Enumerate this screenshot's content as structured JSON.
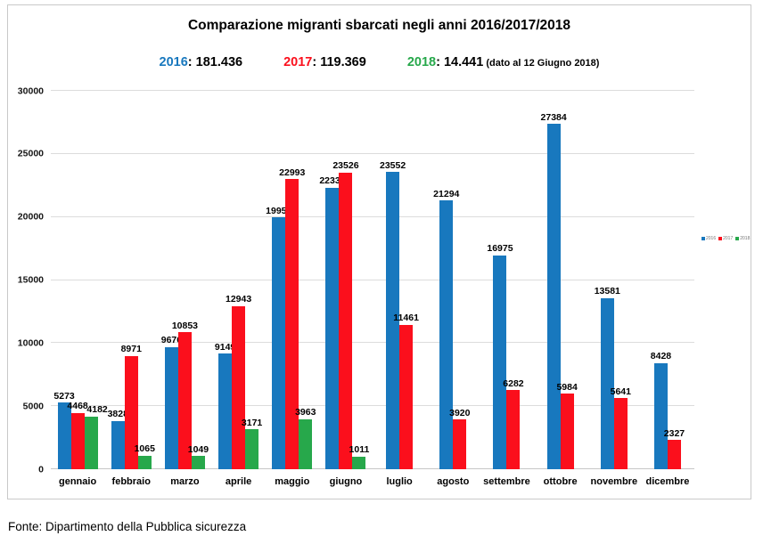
{
  "header": {
    "title": "Comparazione migranti sbarcati negli anni 2016/2017/2018",
    "label_sep": ": ",
    "summary": [
      {
        "year": "2016",
        "total": "181.436",
        "note": "",
        "color": "#1878BE"
      },
      {
        "year": "2017",
        "total": "119.369",
        "note": "",
        "color": "#FB0F1C"
      },
      {
        "year": "2018",
        "total": "14.441",
        "note": "(dato al 12 Giugno 2018)",
        "color": "#27A84B"
      }
    ]
  },
  "chart_data": {
    "type": "bar",
    "title": "Comparazione migranti sbarcati negli anni 2016/2017/2018",
    "categories": [
      "gennaio",
      "febbraio",
      "marzo",
      "aprile",
      "maggio",
      "giugno",
      "luglio",
      "agosto",
      "settembre",
      "ottobre",
      "novembre",
      "dicembre"
    ],
    "series": [
      {
        "name": "2016",
        "color": "#1878BE",
        "values": [
          5273,
          3828,
          9676,
          9149,
          19957,
          22339,
          23552,
          21294,
          16975,
          27384,
          13581,
          8428
        ]
      },
      {
        "name": "2017",
        "color": "#FB0F1C",
        "values": [
          4468,
          8971,
          10853,
          12943,
          22993,
          23526,
          11461,
          3920,
          6282,
          5984,
          5641,
          2327
        ]
      },
      {
        "name": "2018",
        "color": "#27A84B",
        "values": [
          4182,
          1065,
          1049,
          3171,
          3963,
          1011,
          null,
          null,
          null,
          null,
          null,
          null
        ]
      }
    ],
    "xlabel": "",
    "ylabel": "",
    "ylim": [
      0,
      30000
    ],
    "yticks": [
      0,
      5000,
      10000,
      15000,
      20000,
      25000,
      30000
    ],
    "grid": true,
    "legend_position": "right",
    "legend_labels": [
      "2016",
      "2017",
      "2018"
    ]
  },
  "footer": {
    "source": "Fonte: Dipartimento della Pubblica sicurezza"
  }
}
